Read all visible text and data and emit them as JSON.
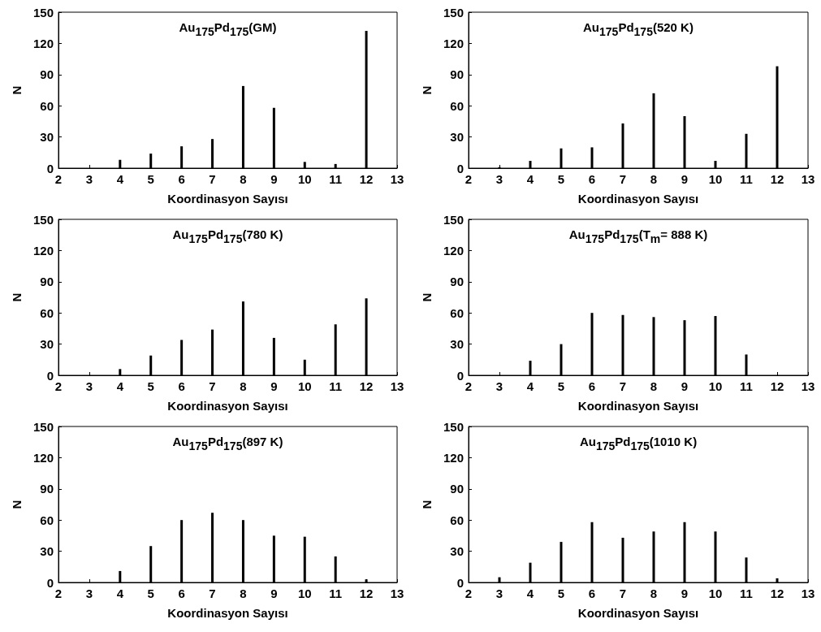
{
  "chart_data": [
    {
      "type": "bar",
      "title": "Au$_{175}$Pd$_{175}$(GM)",
      "xlabel": "Koordinasyon Sayısı",
      "ylabel": "N",
      "color": "#000000",
      "xlim": [
        2,
        13
      ],
      "xticks": [
        2,
        3,
        4,
        5,
        6,
        7,
        8,
        9,
        10,
        11,
        12,
        13
      ],
      "ylim": [
        0,
        150
      ],
      "yticks": [
        0,
        30,
        60,
        90,
        120,
        150
      ],
      "x": [
        4,
        5,
        6,
        7,
        8,
        9,
        10,
        11,
        12
      ],
      "values": [
        8,
        14,
        21,
        28,
        79,
        58,
        6,
        4,
        132
      ]
    },
    {
      "type": "bar",
      "title": "Au$_{175}$Pd$_{175}$(520 K)",
      "xlabel": "Koordinasyon Sayısı",
      "ylabel": "N",
      "color": "#000000",
      "xlim": [
        2,
        13
      ],
      "xticks": [
        2,
        3,
        4,
        5,
        6,
        7,
        8,
        9,
        10,
        11,
        12,
        13
      ],
      "ylim": [
        0,
        150
      ],
      "yticks": [
        0,
        30,
        60,
        90,
        120,
        150
      ],
      "x": [
        3,
        4,
        5,
        6,
        7,
        8,
        9,
        10,
        11,
        12
      ],
      "values": [
        1,
        7,
        19,
        20,
        43,
        72,
        50,
        7,
        33,
        98
      ]
    },
    {
      "type": "bar",
      "title": "Au$_{175}$Pd$_{175}$(780 K)",
      "xlabel": "Koordinasyon Sayısı",
      "ylabel": "N",
      "color": "#000000",
      "xlim": [
        2,
        13
      ],
      "xticks": [
        2,
        3,
        4,
        5,
        6,
        7,
        8,
        9,
        10,
        11,
        12,
        13
      ],
      "ylim": [
        0,
        150
      ],
      "yticks": [
        0,
        30,
        60,
        90,
        120,
        150
      ],
      "x": [
        4,
        5,
        6,
        7,
        8,
        9,
        10,
        11,
        12
      ],
      "values": [
        6,
        19,
        34,
        44,
        71,
        36,
        15,
        49,
        74
      ]
    },
    {
      "type": "bar",
      "title": "Au$_{175}$Pd$_{175}$(T$_{m}$= 888 K)",
      "xlabel": "Koordinasyon Sayısı",
      "ylabel": "N",
      "color": "#000000",
      "xlim": [
        2,
        13
      ],
      "xticks": [
        2,
        3,
        4,
        5,
        6,
        7,
        8,
        9,
        10,
        11,
        12,
        13
      ],
      "ylim": [
        0,
        150
      ],
      "yticks": [
        0,
        30,
        60,
        90,
        120,
        150
      ],
      "x": [
        4,
        5,
        6,
        7,
        8,
        9,
        10,
        11
      ],
      "values": [
        14,
        30,
        60,
        58,
        56,
        53,
        57,
        20
      ]
    },
    {
      "type": "bar",
      "title": "Au$_{175}$Pd$_{175}$(897 K)",
      "xlabel": "Koordinasyon Sayısı",
      "ylabel": "N",
      "color": "#000000",
      "xlim": [
        2,
        13
      ],
      "xticks": [
        2,
        3,
        4,
        5,
        6,
        7,
        8,
        9,
        10,
        11,
        12,
        13
      ],
      "ylim": [
        0,
        150
      ],
      "yticks": [
        0,
        30,
        60,
        90,
        120,
        150
      ],
      "x": [
        4,
        5,
        6,
        7,
        8,
        9,
        10,
        11,
        12
      ],
      "values": [
        11,
        35,
        60,
        67,
        60,
        45,
        44,
        25,
        3
      ]
    },
    {
      "type": "bar",
      "title": "Au$_{175}$Pd$_{175}$(1010 K)",
      "xlabel": "Koordinasyon Sayısı",
      "ylabel": "N",
      "color": "#000000",
      "xlim": [
        2,
        13
      ],
      "xticks": [
        2,
        3,
        4,
        5,
        6,
        7,
        8,
        9,
        10,
        11,
        12,
        13
      ],
      "ylim": [
        0,
        150
      ],
      "yticks": [
        0,
        30,
        60,
        90,
        120,
        150
      ],
      "x": [
        3,
        4,
        5,
        6,
        7,
        8,
        9,
        10,
        11,
        12
      ],
      "values": [
        5,
        19,
        39,
        58,
        43,
        49,
        58,
        49,
        24,
        4
      ]
    }
  ]
}
